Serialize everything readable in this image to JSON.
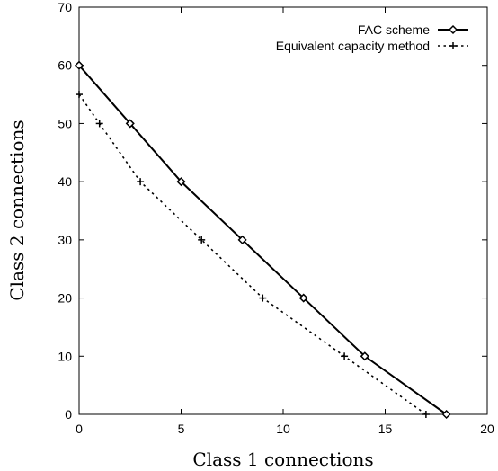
{
  "chart_data": {
    "type": "line",
    "title": "",
    "xlabel": "Class 1 connections",
    "ylabel": "Class 2 connections",
    "xlim": [
      0,
      20
    ],
    "ylim": [
      0,
      70
    ],
    "xticks": [
      0,
      5,
      10,
      15,
      20
    ],
    "yticks": [
      0,
      10,
      20,
      30,
      40,
      50,
      60,
      70
    ],
    "grid": false,
    "legend_position": "top-right",
    "series": [
      {
        "name": "FAC scheme",
        "style": "solid",
        "marker": "diamond",
        "color": "#000000",
        "x": [
          0,
          2.5,
          5,
          8,
          11,
          14,
          18
        ],
        "y": [
          60,
          50,
          40,
          30,
          20,
          10,
          0
        ]
      },
      {
        "name": "Equivalent capacity method",
        "style": "dotted",
        "marker": "plus",
        "color": "#000000",
        "x": [
          0,
          1,
          3,
          6,
          9,
          13,
          17
        ],
        "y": [
          55,
          50,
          40,
          30,
          20,
          10,
          0
        ]
      }
    ]
  }
}
